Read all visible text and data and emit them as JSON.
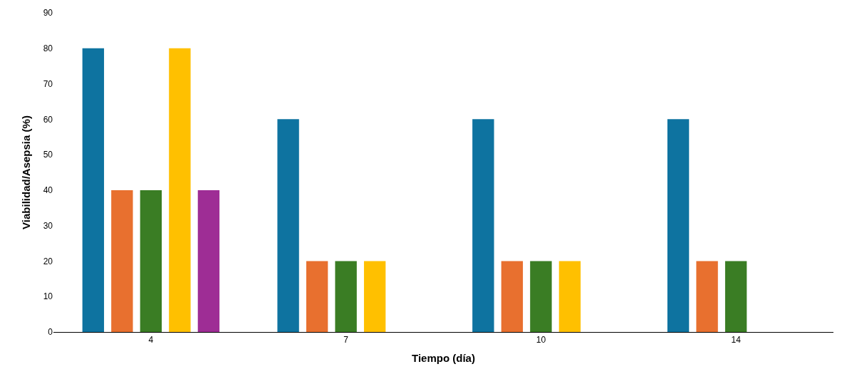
{
  "chart_data": {
    "type": "bar",
    "xlabel": "Tiempo (día)",
    "ylabel": "Viabilidad/Asepsia (%)",
    "categories": [
      "4",
      "7",
      "10",
      "14"
    ],
    "series": [
      {
        "color": "#0e73a0",
        "values": [
          80,
          60,
          60,
          60
        ]
      },
      {
        "color": "#e8702f",
        "values": [
          40,
          20,
          20,
          20
        ]
      },
      {
        "color": "#3a7d24",
        "values": [
          40,
          20,
          20,
          20
        ]
      },
      {
        "color": "#ffc000",
        "values": [
          80,
          20,
          20,
          null
        ]
      },
      {
        "color": "#9e2d95",
        "values": [
          40,
          null,
          null,
          null
        ]
      }
    ],
    "ylim": [
      0,
      90
    ],
    "yticks": [
      0,
      10,
      20,
      30,
      40,
      50,
      60,
      70,
      80,
      90
    ],
    "grid": false
  }
}
